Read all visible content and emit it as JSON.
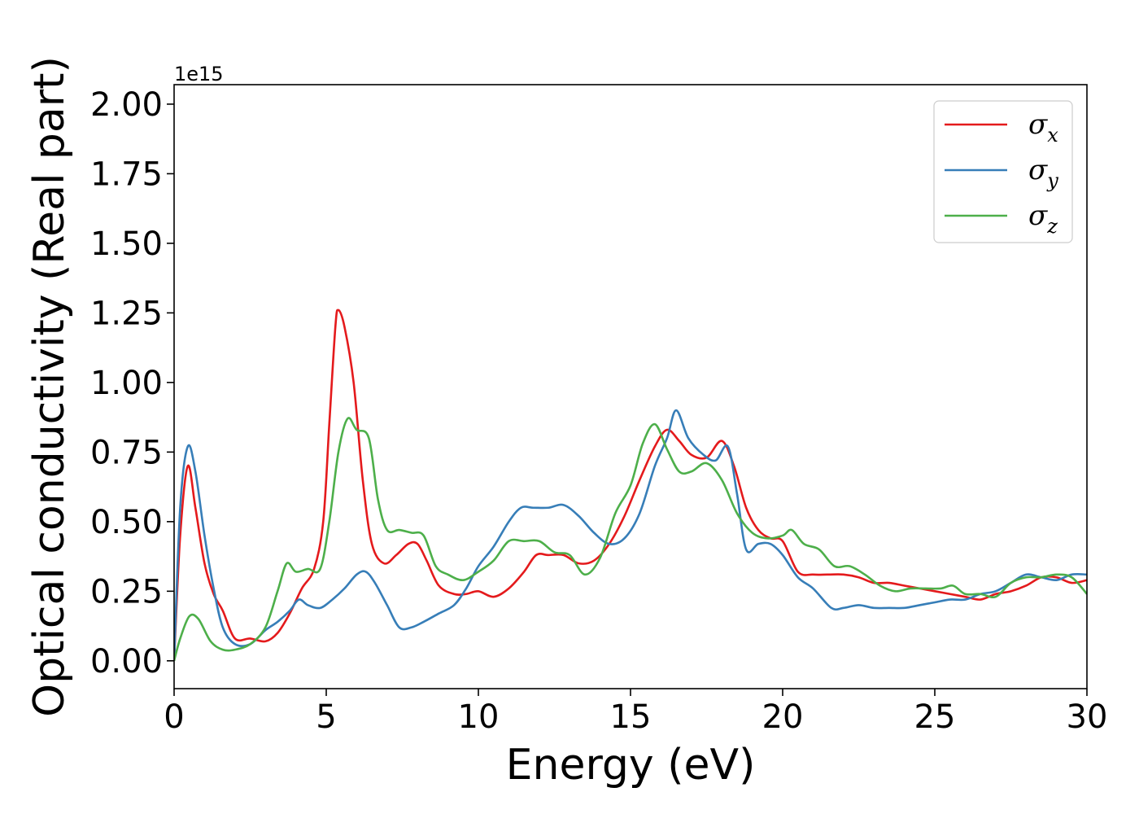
{
  "chart_data": {
    "type": "line",
    "xlabel": "Energy (eV)",
    "ylabel": "Optical conductivity (Real part)",
    "y_offset_text": "1e15",
    "xlim": [
      0,
      30
    ],
    "ylim": [
      -0.1,
      2.07
    ],
    "x_ticks": [
      0,
      5,
      10,
      15,
      20,
      25,
      30
    ],
    "x_tick_labels": [
      "0",
      "5",
      "10",
      "15",
      "20",
      "25",
      "30"
    ],
    "y_ticks": [
      0.0,
      0.25,
      0.5,
      0.75,
      1.0,
      1.25,
      1.5,
      1.75,
      2.0
    ],
    "y_tick_labels": [
      "0.00",
      "0.25",
      "0.50",
      "0.75",
      "1.00",
      "1.25",
      "1.50",
      "1.75",
      "2.00"
    ],
    "grid": false,
    "legend_position": "top-right",
    "series": [
      {
        "name": "σx",
        "legend_symbol": "σ",
        "legend_subscript": "x",
        "color": "#e41a1c",
        "points": [
          [
            0,
            0
          ],
          [
            0.2,
            0.45
          ],
          [
            0.45,
            0.7
          ],
          [
            0.7,
            0.55
          ],
          [
            1.0,
            0.35
          ],
          [
            1.3,
            0.24
          ],
          [
            1.6,
            0.18
          ],
          [
            2.0,
            0.08
          ],
          [
            2.5,
            0.08
          ],
          [
            3.0,
            0.07
          ],
          [
            3.4,
            0.1
          ],
          [
            3.8,
            0.17
          ],
          [
            4.2,
            0.26
          ],
          [
            4.6,
            0.33
          ],
          [
            4.9,
            0.5
          ],
          [
            5.1,
            0.85
          ],
          [
            5.3,
            1.2
          ],
          [
            5.4,
            1.26
          ],
          [
            5.6,
            1.2
          ],
          [
            5.9,
            1.0
          ],
          [
            6.2,
            0.65
          ],
          [
            6.5,
            0.42
          ],
          [
            6.9,
            0.35
          ],
          [
            7.3,
            0.38
          ],
          [
            7.7,
            0.42
          ],
          [
            8.0,
            0.42
          ],
          [
            8.3,
            0.36
          ],
          [
            8.7,
            0.27
          ],
          [
            9.2,
            0.24
          ],
          [
            9.6,
            0.24
          ],
          [
            10.0,
            0.25
          ],
          [
            10.5,
            0.23
          ],
          [
            11.0,
            0.26
          ],
          [
            11.5,
            0.32
          ],
          [
            11.9,
            0.38
          ],
          [
            12.3,
            0.38
          ],
          [
            12.8,
            0.38
          ],
          [
            13.3,
            0.35
          ],
          [
            13.8,
            0.36
          ],
          [
            14.3,
            0.42
          ],
          [
            14.8,
            0.52
          ],
          [
            15.3,
            0.65
          ],
          [
            15.8,
            0.77
          ],
          [
            16.2,
            0.83
          ],
          [
            16.6,
            0.79
          ],
          [
            17.0,
            0.74
          ],
          [
            17.5,
            0.73
          ],
          [
            18.0,
            0.79
          ],
          [
            18.4,
            0.7
          ],
          [
            18.8,
            0.55
          ],
          [
            19.2,
            0.47
          ],
          [
            19.6,
            0.44
          ],
          [
            20.0,
            0.43
          ],
          [
            20.5,
            0.32
          ],
          [
            21.0,
            0.31
          ],
          [
            21.5,
            0.31
          ],
          [
            22.0,
            0.31
          ],
          [
            22.5,
            0.3
          ],
          [
            23.0,
            0.28
          ],
          [
            23.5,
            0.28
          ],
          [
            24.0,
            0.27
          ],
          [
            24.5,
            0.26
          ],
          [
            25.0,
            0.25
          ],
          [
            25.5,
            0.24
          ],
          [
            26.0,
            0.23
          ],
          [
            26.5,
            0.22
          ],
          [
            27.0,
            0.24
          ],
          [
            27.5,
            0.25
          ],
          [
            28.0,
            0.27
          ],
          [
            28.5,
            0.3
          ],
          [
            29.0,
            0.3
          ],
          [
            29.5,
            0.28
          ],
          [
            30.0,
            0.29
          ]
        ]
      },
      {
        "name": "σy",
        "legend_symbol": "σ",
        "legend_subscript": "y",
        "color": "#377eb8",
        "points": [
          [
            0,
            0
          ],
          [
            0.2,
            0.55
          ],
          [
            0.45,
            0.77
          ],
          [
            0.7,
            0.68
          ],
          [
            1.0,
            0.45
          ],
          [
            1.3,
            0.26
          ],
          [
            1.6,
            0.12
          ],
          [
            2.0,
            0.06
          ],
          [
            2.5,
            0.06
          ],
          [
            3.0,
            0.11
          ],
          [
            3.4,
            0.14
          ],
          [
            3.8,
            0.18
          ],
          [
            4.1,
            0.22
          ],
          [
            4.4,
            0.2
          ],
          [
            4.8,
            0.19
          ],
          [
            5.2,
            0.22
          ],
          [
            5.6,
            0.26
          ],
          [
            6.0,
            0.31
          ],
          [
            6.3,
            0.32
          ],
          [
            6.6,
            0.28
          ],
          [
            7.0,
            0.2
          ],
          [
            7.4,
            0.12
          ],
          [
            7.8,
            0.12
          ],
          [
            8.2,
            0.14
          ],
          [
            8.7,
            0.17
          ],
          [
            9.2,
            0.2
          ],
          [
            9.6,
            0.26
          ],
          [
            10.0,
            0.34
          ],
          [
            10.5,
            0.41
          ],
          [
            11.0,
            0.5
          ],
          [
            11.4,
            0.55
          ],
          [
            11.8,
            0.55
          ],
          [
            12.3,
            0.55
          ],
          [
            12.8,
            0.56
          ],
          [
            13.3,
            0.52
          ],
          [
            13.8,
            0.46
          ],
          [
            14.3,
            0.42
          ],
          [
            14.8,
            0.44
          ],
          [
            15.3,
            0.53
          ],
          [
            15.8,
            0.7
          ],
          [
            16.2,
            0.8
          ],
          [
            16.5,
            0.9
          ],
          [
            16.9,
            0.8
          ],
          [
            17.4,
            0.74
          ],
          [
            17.8,
            0.72
          ],
          [
            18.2,
            0.77
          ],
          [
            18.5,
            0.6
          ],
          [
            18.8,
            0.4
          ],
          [
            19.2,
            0.42
          ],
          [
            19.6,
            0.42
          ],
          [
            20.0,
            0.38
          ],
          [
            20.5,
            0.3
          ],
          [
            21.0,
            0.26
          ],
          [
            21.6,
            0.19
          ],
          [
            22.0,
            0.19
          ],
          [
            22.5,
            0.2
          ],
          [
            23.0,
            0.19
          ],
          [
            23.5,
            0.19
          ],
          [
            24.0,
            0.19
          ],
          [
            24.5,
            0.2
          ],
          [
            25.0,
            0.21
          ],
          [
            25.5,
            0.22
          ],
          [
            26.0,
            0.22
          ],
          [
            26.5,
            0.24
          ],
          [
            27.0,
            0.25
          ],
          [
            27.5,
            0.28
          ],
          [
            28.0,
            0.31
          ],
          [
            28.5,
            0.3
          ],
          [
            29.0,
            0.29
          ],
          [
            29.5,
            0.31
          ],
          [
            30.0,
            0.31
          ]
        ]
      },
      {
        "name": "σz",
        "legend_symbol": "σ",
        "legend_subscript": "z",
        "color": "#4daf4a",
        "points": [
          [
            0,
            0
          ],
          [
            0.2,
            0.08
          ],
          [
            0.5,
            0.16
          ],
          [
            0.8,
            0.15
          ],
          [
            1.2,
            0.07
          ],
          [
            1.6,
            0.04
          ],
          [
            2.0,
            0.04
          ],
          [
            2.5,
            0.06
          ],
          [
            3.0,
            0.12
          ],
          [
            3.4,
            0.25
          ],
          [
            3.7,
            0.35
          ],
          [
            4.0,
            0.32
          ],
          [
            4.4,
            0.33
          ],
          [
            4.8,
            0.33
          ],
          [
            5.1,
            0.5
          ],
          [
            5.4,
            0.75
          ],
          [
            5.7,
            0.87
          ],
          [
            6.0,
            0.83
          ],
          [
            6.4,
            0.8
          ],
          [
            6.7,
            0.58
          ],
          [
            7.0,
            0.47
          ],
          [
            7.4,
            0.47
          ],
          [
            7.8,
            0.46
          ],
          [
            8.2,
            0.45
          ],
          [
            8.6,
            0.34
          ],
          [
            9.0,
            0.31
          ],
          [
            9.5,
            0.29
          ],
          [
            10.0,
            0.32
          ],
          [
            10.5,
            0.36
          ],
          [
            11.0,
            0.43
          ],
          [
            11.5,
            0.43
          ],
          [
            12.0,
            0.43
          ],
          [
            12.5,
            0.39
          ],
          [
            13.0,
            0.38
          ],
          [
            13.5,
            0.31
          ],
          [
            14.0,
            0.37
          ],
          [
            14.5,
            0.53
          ],
          [
            15.0,
            0.63
          ],
          [
            15.4,
            0.78
          ],
          [
            15.8,
            0.85
          ],
          [
            16.2,
            0.76
          ],
          [
            16.6,
            0.68
          ],
          [
            17.0,
            0.68
          ],
          [
            17.5,
            0.71
          ],
          [
            18.0,
            0.65
          ],
          [
            18.5,
            0.53
          ],
          [
            19.0,
            0.46
          ],
          [
            19.5,
            0.44
          ],
          [
            20.0,
            0.45
          ],
          [
            20.3,
            0.47
          ],
          [
            20.7,
            0.42
          ],
          [
            21.2,
            0.4
          ],
          [
            21.7,
            0.34
          ],
          [
            22.2,
            0.34
          ],
          [
            22.7,
            0.31
          ],
          [
            23.2,
            0.27
          ],
          [
            23.7,
            0.25
          ],
          [
            24.2,
            0.26
          ],
          [
            24.7,
            0.26
          ],
          [
            25.2,
            0.26
          ],
          [
            25.6,
            0.27
          ],
          [
            26.0,
            0.24
          ],
          [
            26.5,
            0.24
          ],
          [
            27.0,
            0.23
          ],
          [
            27.5,
            0.28
          ],
          [
            28.0,
            0.3
          ],
          [
            28.5,
            0.3
          ],
          [
            29.0,
            0.31
          ],
          [
            29.5,
            0.3
          ],
          [
            30.0,
            0.24
          ]
        ]
      }
    ]
  }
}
